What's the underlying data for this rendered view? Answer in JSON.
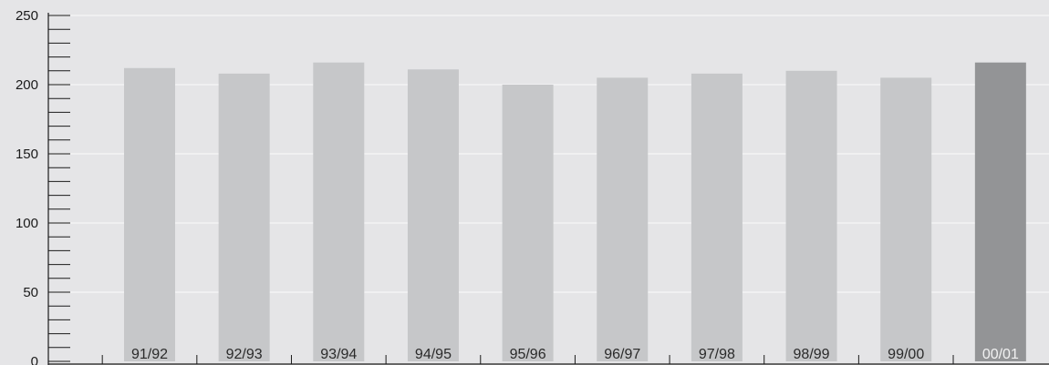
{
  "chart_data": {
    "type": "bar",
    "title": "",
    "xlabel": "",
    "ylabel": "",
    "categories": [
      "91/92",
      "92/93",
      "93/94",
      "94/95",
      "95/96",
      "96/97",
      "97/98",
      "98/99",
      "99/00",
      "00/01"
    ],
    "values": [
      212,
      208,
      216,
      211,
      200,
      205,
      208,
      210,
      205,
      216
    ],
    "ylim": [
      0,
      250
    ],
    "yticks": [
      "0",
      "50",
      "100",
      "150",
      "200",
      "250"
    ],
    "minor_tick_step": 10,
    "grid": true,
    "highlight_index": 9,
    "colors": {
      "background": "#e5e5e7",
      "bar": "#c6c7c9",
      "bar_highlight": "#939496",
      "gridline": "#f6f6f7",
      "axis": "#1a1a1a",
      "label_dark": "#2a2a2a",
      "label_light": "#f2f2f2"
    }
  }
}
